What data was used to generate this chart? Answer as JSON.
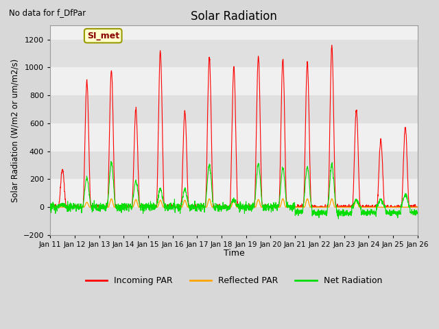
{
  "title": "Solar Radiation",
  "subtitle": "No data for f_DfPar",
  "ylabel": "Solar Radiation (W/m2 or um/m2/s)",
  "xlabel": "Time",
  "ylim": [
    -200,
    1300
  ],
  "yticks": [
    -200,
    0,
    200,
    400,
    600,
    800,
    1000,
    1200
  ],
  "xtick_labels": [
    "Jan 11",
    "Jan 12",
    "Jan 13",
    "Jan 14",
    "Jan 15",
    "Jan 16",
    "Jan 17",
    "Jan 18",
    "Jan 19",
    "Jan 20",
    "Jan 21",
    "Jan 22",
    "Jan 23",
    "Jan 24",
    "Jan 25",
    "Jan 26"
  ],
  "legend_label": "SI_met",
  "fig_bg": "#d8d8d8",
  "plot_bg_light": "#f0f0f0",
  "plot_bg_dark": "#e0e0e0",
  "line_colors": {
    "incoming": "#ff0000",
    "reflected": "#ffa500",
    "net": "#00dd00"
  },
  "legend_items": [
    "Incoming PAR",
    "Reflected PAR",
    "Net Radiation"
  ],
  "incoming_peaks": [
    270,
    900,
    980,
    700,
    1110,
    680,
    1070,
    1000,
    1080,
    1050,
    1030,
    1150,
    690,
    480,
    570
  ],
  "net_peaks": [
    20,
    210,
    320,
    185,
    130,
    130,
    305,
    55,
    310,
    280,
    290,
    300,
    50,
    55,
    90
  ],
  "reflected_peaks": [
    0,
    35,
    60,
    55,
    50,
    50,
    60,
    50,
    55,
    60,
    60,
    60,
    55,
    0,
    0
  ]
}
